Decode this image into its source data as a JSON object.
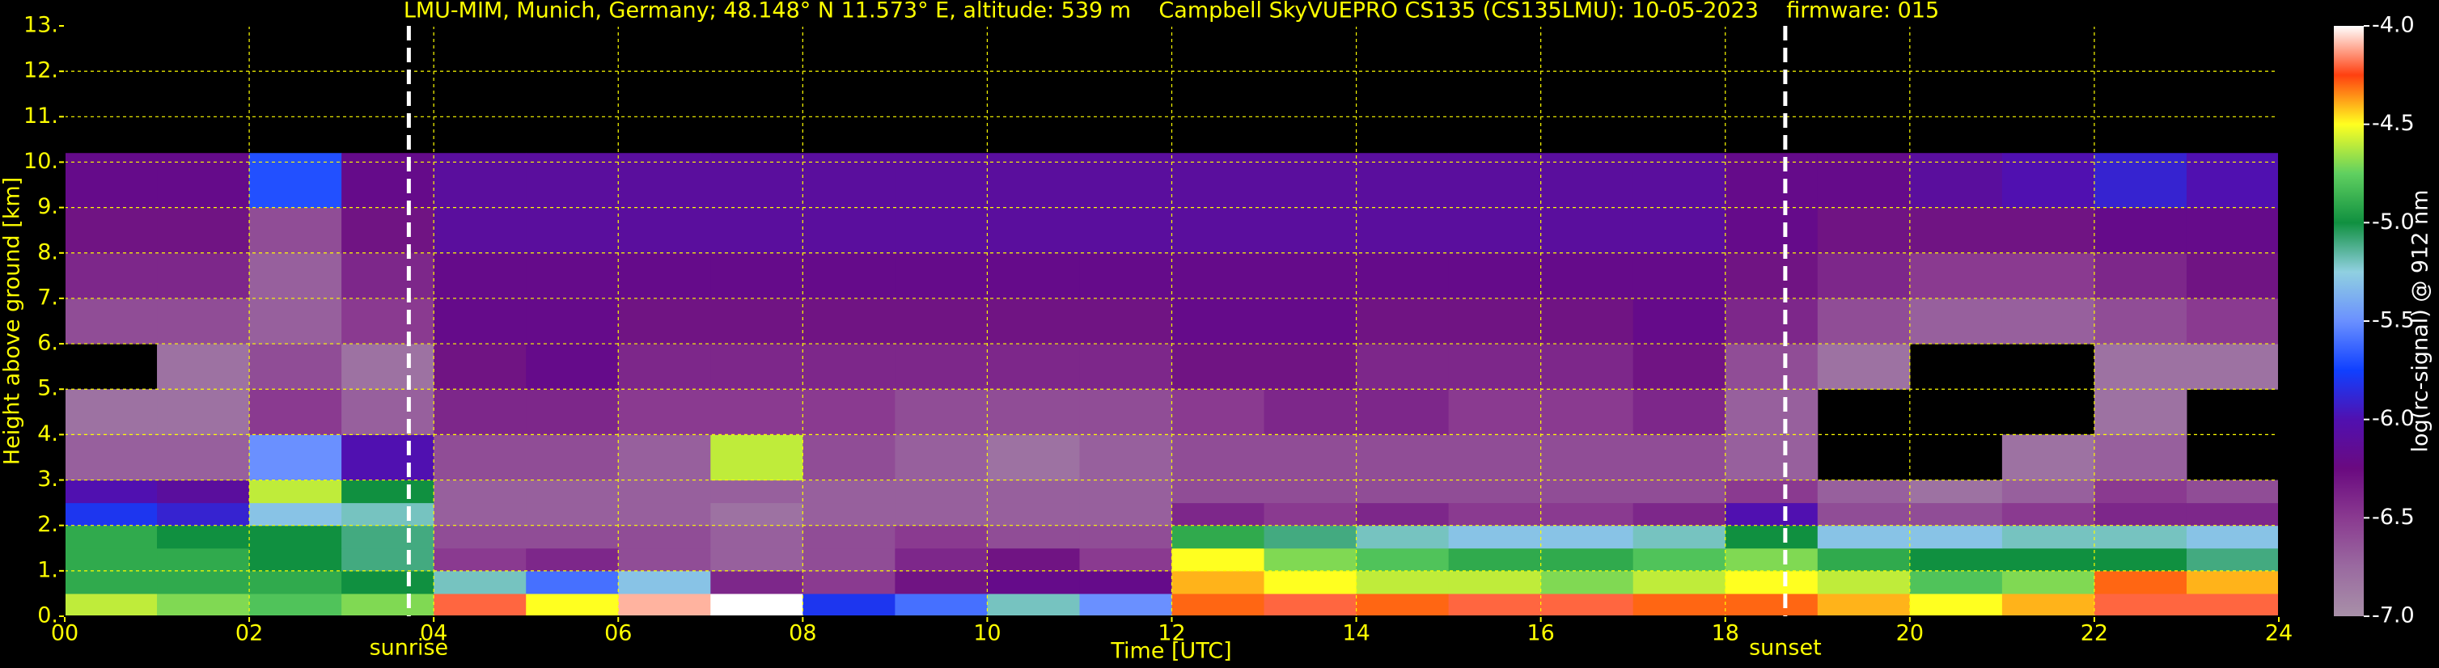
{
  "chart_data": {
    "type": "heatmap",
    "title": "LMU-MIM, Munich, Germany; 48.148° N 11.573° E, altitude: 539 m    Campbell SkyVUEPRO CS135 (CS135LMU): 10-05-2023    firmware: 015",
    "x_label": "Time [UTC]",
    "y_label": "Height above ground [km]",
    "colorbar_label": "log(rc-signal) @ 912 nm",
    "xlim": [
      0,
      24
    ],
    "ylim": [
      0,
      13
    ],
    "zlim": [
      -7,
      -4
    ],
    "xticks": [
      {
        "value": 0,
        "label": "00"
      },
      {
        "value": 2,
        "label": "02"
      },
      {
        "value": 4,
        "label": "04"
      },
      {
        "value": 6,
        "label": "06"
      },
      {
        "value": 8,
        "label": "08"
      },
      10,
      12,
      14,
      16,
      18,
      20,
      22,
      24
    ],
    "yticks": [
      {
        "value": 0,
        "label": "0."
      },
      {
        "value": 1,
        "label": "1."
      },
      {
        "value": 2,
        "label": "2."
      },
      {
        "value": 3,
        "label": "3."
      },
      {
        "value": 4,
        "label": "4."
      },
      {
        "value": 5,
        "label": "5."
      },
      {
        "value": 6,
        "label": "6."
      },
      {
        "value": 7,
        "label": "7."
      },
      {
        "value": 8,
        "label": "8."
      },
      {
        "value": 9,
        "label": "9."
      },
      {
        "value": 10,
        "label": "10."
      },
      {
        "value": 11,
        "label": "11."
      },
      {
        "value": 12,
        "label": "12."
      },
      {
        "value": 13,
        "label": "13."
      }
    ],
    "zticks": [
      {
        "value": -4,
        "label": "-4.0"
      },
      -4.5,
      {
        "value": -5,
        "label": "-5.0"
      },
      -5.5,
      {
        "value": -6,
        "label": "-6.0"
      },
      -6.5,
      {
        "value": -7,
        "label": "-7.0"
      }
    ],
    "grid": true,
    "grid_color": "#ffff00",
    "colormap": [
      "#a890a8",
      "#9a6aa0",
      "#8a3a90",
      "#6a0a80",
      "#5010b0",
      "#1040ff",
      "#6a90ff",
      "#90d0e0",
      "#109040",
      "#60d060",
      "#ffff20",
      "#ff4010",
      "#ffffff"
    ],
    "annotations": [
      {
        "text": "sunrise",
        "x": 3.73
      },
      {
        "text": "sunset",
        "x": 18.65
      }
    ],
    "x_edges": [
      0,
      1,
      2,
      3,
      4,
      5,
      6,
      7,
      8,
      9,
      10,
      11,
      12,
      13,
      14,
      15,
      16,
      17,
      18,
      19,
      20,
      21,
      22,
      23,
      24
    ],
    "y_edges": [
      0,
      0.5,
      1,
      1.5,
      2,
      2.5,
      3,
      4,
      5,
      6,
      7,
      8,
      9,
      10.2
    ],
    "values": [
      [
        -4.6,
        -4.7,
        -4.8,
        -4.7,
        -4.2,
        -4.5,
        -4.1,
        -4.0,
        -5.8,
        -5.6,
        -5.2,
        -5.5,
        -4.3,
        -4.2,
        -4.3,
        -4.2,
        -4.2,
        -4.3,
        -4.3,
        -4.4,
        -4.5,
        -4.4,
        -4.2,
        -4.2
      ],
      [
        -4.9,
        -4.9,
        -4.9,
        -5.0,
        -5.2,
        -5.6,
        -5.3,
        -6.4,
        -6.5,
        -6.3,
        -6.2,
        -6.2,
        -4.4,
        -4.5,
        -4.6,
        -4.6,
        -4.7,
        -4.6,
        -4.5,
        -4.6,
        -4.8,
        -4.7,
        -4.3,
        -4.4
      ],
      [
        -4.9,
        -4.9,
        -5.0,
        -5.1,
        -6.5,
        -6.4,
        -6.6,
        -6.7,
        -6.6,
        -6.4,
        -6.3,
        -6.5,
        -4.5,
        -4.7,
        -4.8,
        -4.9,
        -4.9,
        -4.8,
        -4.7,
        -4.9,
        -5.0,
        -5.0,
        -5.0,
        -5.1
      ],
      [
        -4.9,
        -5.0,
        -5.0,
        -5.1,
        -6.6,
        -6.6,
        -6.6,
        -6.7,
        -6.6,
        -6.5,
        -6.6,
        -6.6,
        -4.9,
        -5.1,
        -5.2,
        -5.3,
        -5.3,
        -5.2,
        -5.0,
        -5.3,
        -5.3,
        -5.2,
        -5.2,
        -5.3
      ],
      [
        -5.8,
        -5.9,
        -5.3,
        -5.2,
        -6.7,
        -6.7,
        -6.7,
        -6.8,
        -6.7,
        -6.7,
        -6.7,
        -6.7,
        -6.4,
        -6.5,
        -6.4,
        -6.5,
        -6.5,
        -6.4,
        -6.0,
        -6.6,
        -6.6,
        -6.5,
        -6.4,
        -6.4
      ],
      [
        -6.0,
        -6.1,
        -4.6,
        -5.0,
        -6.7,
        -6.7,
        -6.7,
        -6.7,
        -6.7,
        -6.7,
        -6.7,
        -6.7,
        -6.6,
        -6.6,
        -6.6,
        -6.6,
        -6.6,
        -6.6,
        -6.5,
        -6.7,
        -6.8,
        -6.7,
        -6.5,
        -6.6
      ],
      [
        -6.7,
        -6.7,
        -5.5,
        -6.0,
        -6.6,
        -6.6,
        -6.7,
        -4.6,
        -6.6,
        -6.7,
        -6.8,
        -6.7,
        -6.6,
        -6.6,
        -6.6,
        -6.6,
        -6.6,
        -6.6,
        -6.7,
        null,
        null,
        -6.8,
        -6.7,
        null
      ],
      [
        -6.8,
        -6.8,
        -6.5,
        -6.7,
        -6.4,
        -6.4,
        -6.5,
        -6.5,
        -6.5,
        -6.6,
        -6.6,
        -6.6,
        -6.5,
        -6.4,
        -6.4,
        -6.5,
        -6.5,
        -6.4,
        -6.7,
        null,
        null,
        null,
        -6.8,
        null
      ],
      [
        null,
        -6.8,
        -6.6,
        -6.8,
        -6.3,
        -6.2,
        -6.4,
        -6.4,
        -6.4,
        -6.4,
        -6.4,
        -6.4,
        -6.3,
        -6.3,
        -6.4,
        -6.4,
        -6.4,
        -6.3,
        -6.6,
        -6.8,
        null,
        null,
        -6.8,
        -6.8
      ],
      [
        -6.6,
        -6.6,
        -6.7,
        -6.5,
        -6.2,
        -6.2,
        -6.3,
        -6.3,
        -6.3,
        -6.3,
        -6.3,
        -6.3,
        -6.2,
        -6.2,
        -6.3,
        -6.3,
        -6.3,
        -6.2,
        -6.4,
        -6.6,
        -6.7,
        -6.7,
        -6.6,
        -6.5
      ],
      [
        -6.4,
        -6.4,
        -6.7,
        -6.4,
        -6.2,
        -6.2,
        -6.2,
        -6.2,
        -6.2,
        -6.2,
        -6.2,
        -6.2,
        -6.2,
        -6.2,
        -6.2,
        -6.2,
        -6.2,
        -6.2,
        -6.3,
        -6.4,
        -6.5,
        -6.5,
        -6.4,
        -6.3
      ],
      [
        -6.3,
        -6.3,
        -6.6,
        -6.3,
        -6.1,
        -6.1,
        -6.1,
        -6.1,
        -6.1,
        -6.1,
        -6.1,
        -6.1,
        -6.1,
        -6.1,
        -6.1,
        -6.1,
        -6.1,
        -6.1,
        -6.2,
        -6.3,
        -6.3,
        -6.3,
        -6.2,
        -6.2
      ],
      [
        -6.2,
        -6.2,
        -5.7,
        -6.2,
        -6.1,
        -6.1,
        -6.1,
        -6.1,
        -6.1,
        -6.1,
        -6.1,
        -6.1,
        -6.1,
        -6.1,
        -6.1,
        -6.1,
        -6.1,
        -6.1,
        -6.2,
        -6.2,
        -6.1,
        -6.0,
        -5.9,
        -6.0
      ]
    ]
  }
}
